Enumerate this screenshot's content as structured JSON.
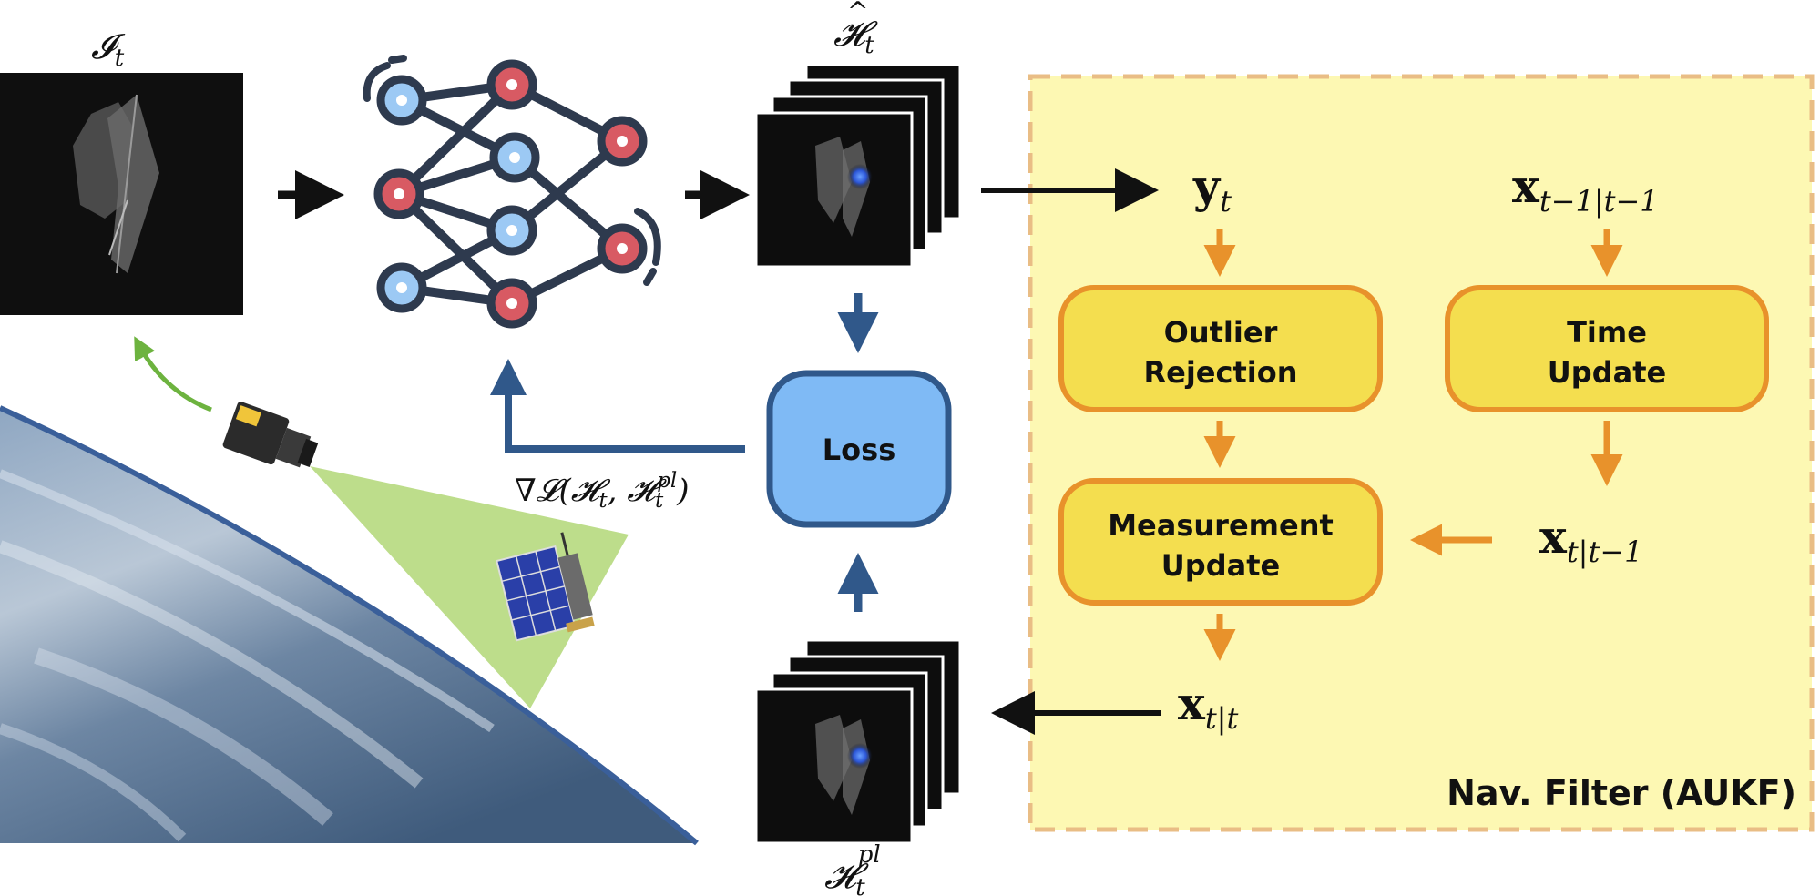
{
  "colors": {
    "filter_bg": "#fdf8b3",
    "filter_border": "#e9bd85",
    "box_fill": "#f4de4f",
    "box_border": "#e8922b",
    "orange_arrow": "#e8922b",
    "blue_arrow": "#30588a",
    "loss_fill": "#7fbaf5",
    "loss_border": "#30588a",
    "node_blue": "#9cc9f4",
    "node_red": "#d85a63",
    "node_border": "#2e3a4e",
    "green_arrow": "#6db33f",
    "camera_fov": "#b6d97e"
  },
  "labels": {
    "input_image": "𝓘",
    "input_image_sub": "t",
    "heatmap_pred": "𝓗",
    "heatmap_pred_sub": "t",
    "heatmap_pseudo": "𝓗",
    "heatmap_pseudo_sub": "t",
    "heatmap_pseudo_sup": "pl",
    "gradient_nabla": "∇𝓛(",
    "gradient_h1": "𝓗",
    "gradient_sub1": "t",
    "gradient_comma": ", 𝓗",
    "gradient_sub2": "t",
    "gradient_sup2": "pl",
    "gradient_close": ")",
    "loss": "Loss",
    "y": "y",
    "y_sub": "t",
    "x_prev": "x",
    "x_prev_sub": "t−1|t−1",
    "x_pred": "x",
    "x_pred_sub": "t|t−1",
    "x_post": "x",
    "x_post_sub": "t|t",
    "outlier_l1": "Outlier",
    "outlier_l2": "Rejection",
    "time_l1": "Time",
    "time_l2": "Update",
    "meas_l1": "Measurement",
    "meas_l2": "Update",
    "filter_title": "Nav. Filter (AUKF)"
  }
}
